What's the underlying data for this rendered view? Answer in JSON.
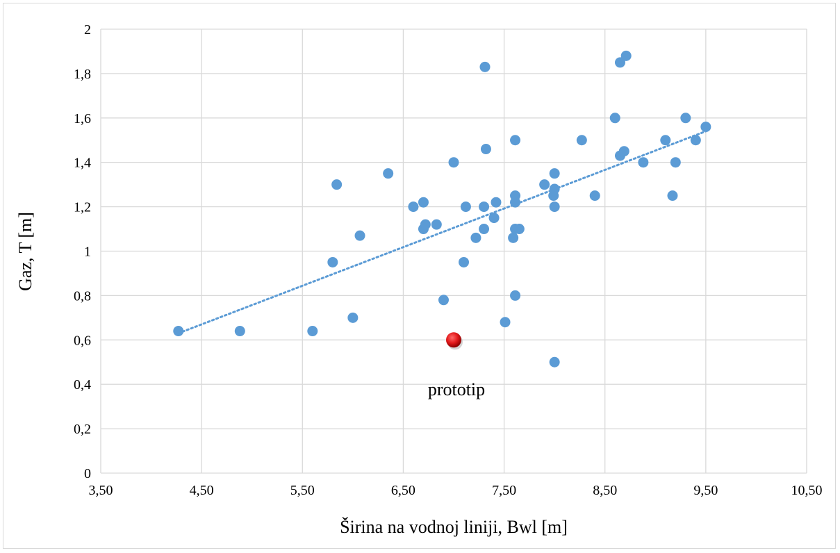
{
  "chart_data": {
    "type": "scatter",
    "title": "",
    "xlabel": "Širina na vodnoj liniji, Bwl [m]",
    "ylabel": "Gaz, T [m]",
    "xlim": [
      3.5,
      10.5
    ],
    "ylim": [
      0,
      2
    ],
    "x_ticks": [
      3.5,
      4.5,
      5.5,
      6.5,
      7.5,
      8.5,
      9.5,
      10.5
    ],
    "x_tick_labels": [
      "3,50",
      "4,50",
      "5,50",
      "6,50",
      "7,50",
      "8,50",
      "9,50",
      "10,50"
    ],
    "y_ticks": [
      0,
      0.2,
      0.4,
      0.6,
      0.8,
      1,
      1.2,
      1.4,
      1.6,
      1.8,
      2
    ],
    "y_tick_labels": [
      "0",
      "0,2",
      "0,4",
      "0,6",
      "0,8",
      "1",
      "1,2",
      "1,4",
      "1,6",
      "1,8",
      "2"
    ],
    "grid": true,
    "colors": {
      "series": "#5b9bd5",
      "prototype": "#e31a1c",
      "grid": "#d9d9d9",
      "trend": "#5b9bd5"
    },
    "series": [
      {
        "points": [
          [
            4.27,
            0.64
          ],
          [
            4.88,
            0.64
          ],
          [
            5.6,
            0.64
          ],
          [
            5.8,
            0.95
          ],
          [
            5.84,
            1.3
          ],
          [
            6.0,
            0.7
          ],
          [
            6.07,
            1.07
          ],
          [
            6.35,
            1.35
          ],
          [
            6.6,
            1.2
          ],
          [
            6.7,
            1.22
          ],
          [
            6.7,
            1.1
          ],
          [
            6.72,
            1.12
          ],
          [
            6.83,
            1.12
          ],
          [
            6.9,
            0.78
          ],
          [
            7.0,
            1.4
          ],
          [
            7.1,
            0.95
          ],
          [
            7.12,
            1.2
          ],
          [
            7.22,
            1.06
          ],
          [
            7.3,
            1.2
          ],
          [
            7.3,
            1.1
          ],
          [
            7.31,
            1.83
          ],
          [
            7.32,
            1.46
          ],
          [
            7.4,
            1.15
          ],
          [
            7.42,
            1.22
          ],
          [
            7.51,
            0.68
          ],
          [
            7.59,
            1.06
          ],
          [
            7.61,
            1.5
          ],
          [
            7.61,
            1.25
          ],
          [
            7.61,
            1.22
          ],
          [
            7.61,
            1.1
          ],
          [
            7.61,
            0.8
          ],
          [
            7.65,
            1.1
          ],
          [
            7.9,
            1.3
          ],
          [
            7.99,
            1.25
          ],
          [
            8.0,
            1.35
          ],
          [
            8.0,
            1.28
          ],
          [
            8.0,
            1.2
          ],
          [
            8.0,
            0.5
          ],
          [
            8.27,
            1.5
          ],
          [
            8.4,
            1.25
          ],
          [
            8.6,
            1.6
          ],
          [
            8.65,
            1.43
          ],
          [
            8.65,
            1.85
          ],
          [
            8.69,
            1.45
          ],
          [
            8.71,
            1.88
          ],
          [
            8.88,
            1.4
          ],
          [
            9.1,
            1.5
          ],
          [
            9.17,
            1.25
          ],
          [
            9.2,
            1.4
          ],
          [
            9.3,
            1.6
          ],
          [
            9.4,
            1.5
          ],
          [
            9.5,
            1.56
          ]
        ]
      }
    ],
    "trendline": {
      "type": "linear",
      "from": [
        4.27,
        0.63
      ],
      "to": [
        9.5,
        1.54
      ]
    },
    "highlight": {
      "x": 7.0,
      "y": 0.6,
      "label": "prototip"
    }
  }
}
